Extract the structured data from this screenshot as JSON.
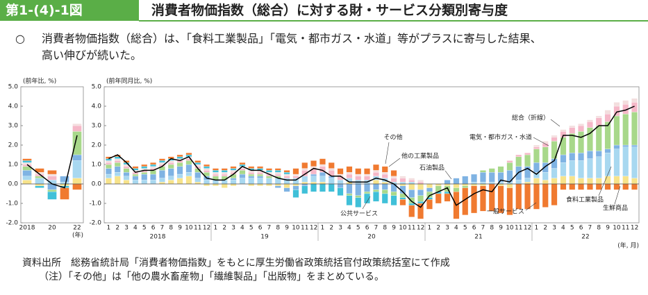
{
  "header": {
    "figure_number": "第1-(4)-1図",
    "title": "消費者物価指数（総合）に対する財・サービス分類別寄与度"
  },
  "summary": {
    "bullet": "○",
    "lines": [
      "消費者物価指数（総合）は、「食料工業製品」「電気・都市ガス・水道」等がプラスに寄与した結果、",
      "高い伸びが続いた。"
    ]
  },
  "chart_data": [
    {
      "type": "stacked_bar",
      "y_axis_label": "(前年比, %)",
      "x_axis_label": "(年)",
      "categories": [
        "2018",
        null,
        "20",
        null,
        "22"
      ],
      "ylim": [
        -2,
        5
      ],
      "yticks": [
        {
          "value": -2,
          "label": "-2.0"
        },
        {
          "value": -1,
          "label": "-1.0"
        },
        {
          "value": 0,
          "label": "0.0"
        },
        {
          "value": 1,
          "label": "1.0"
        },
        {
          "value": 2,
          "label": "2.0"
        },
        {
          "value": 3,
          "label": "3.0"
        },
        {
          "value": 4,
          "label": "4.0"
        },
        {
          "value": 5,
          "label": "5.0"
        }
      ],
      "series": [
        {
          "color": "#f7e38a",
          "values": [
            0.2,
            -0.1,
            0.0,
            -0.1,
            0.3
          ]
        },
        {
          "color": "#a8d8f0",
          "values": [
            0.2,
            0.3,
            0.2,
            0.1,
            0.9
          ]
        },
        {
          "color": "#7fb3e3",
          "values": [
            0.3,
            0.0,
            -0.3,
            0.3,
            0.3
          ]
        },
        {
          "color": "#a8d88a",
          "values": [
            0.2,
            0.1,
            -0.1,
            0.0,
            1.2
          ]
        },
        {
          "color": "#f5b8c8",
          "values": [
            0.1,
            0.1,
            0.2,
            0.0,
            0.3
          ]
        },
        {
          "color": "#f3dede",
          "values": [
            0.1,
            0.1,
            0.1,
            0.0,
            0.1
          ]
        },
        {
          "color": "#40c0d8",
          "values": [
            0.1,
            -0.1,
            -0.4,
            -0.1,
            0.0
          ]
        },
        {
          "color": "#f07a30",
          "values": [
            0.1,
            0.2,
            0.2,
            -0.6,
            -0.3
          ]
        },
        {
          "type": "line",
          "color": "#000000",
          "values": [
            1.0,
            0.5,
            0.0,
            -0.2,
            2.5
          ]
        }
      ]
    },
    {
      "type": "stacked_bar",
      "y_axis_label": "(前年同月比, %)",
      "x_axis_label": "(年, 月)",
      "categories": [
        "1",
        "2",
        "3",
        "4",
        "5",
        "6",
        "7",
        "8",
        "9",
        "10",
        "11",
        "12",
        "1",
        "2",
        "3",
        "4",
        "5",
        "6",
        "7",
        "8",
        "9",
        "10",
        "11",
        "12",
        "1",
        "2",
        "3",
        "4",
        "5",
        "6",
        "7",
        "8",
        "9",
        "10",
        "11",
        "12",
        "1",
        "2",
        "3",
        "4",
        "5",
        "6",
        "7",
        "8",
        "9",
        "10",
        "11",
        "12",
        "1",
        "2",
        "3",
        "4",
        "5",
        "6",
        "7",
        "8",
        "9",
        "10",
        "11",
        "12"
      ],
      "groups": [
        "2018",
        "19",
        "20",
        "21",
        "22"
      ],
      "ylim": [
        -2,
        5
      ],
      "yticks": [
        {
          "value": -2,
          "label": "-2.0"
        },
        {
          "value": -1,
          "label": "-1.0"
        },
        {
          "value": 0,
          "label": "0.0"
        },
        {
          "value": 1,
          "label": "1.0"
        },
        {
          "value": 2,
          "label": "2.0"
        },
        {
          "value": 3,
          "label": "3.0"
        },
        {
          "value": 4,
          "label": "4.0"
        },
        {
          "value": 5,
          "label": "5.0"
        }
      ],
      "series": [
        {
          "name": "生鮮商品",
          "color": "#f7e38a",
          "values": [
            0.3,
            0.4,
            0.2,
            0.0,
            0.0,
            0.0,
            0.1,
            0.2,
            0.3,
            0.4,
            0.1,
            -0.1,
            -0.1,
            -0.2,
            -0.1,
            0.0,
            -0.1,
            -0.1,
            -0.1,
            -0.1,
            -0.2,
            -0.1,
            0.1,
            0.1,
            0.1,
            0.0,
            0.0,
            0.1,
            0.0,
            0.0,
            0.2,
            0.1,
            0.0,
            -0.1,
            -0.3,
            -0.3,
            -0.2,
            -0.1,
            -0.1,
            -0.2,
            -0.1,
            -0.1,
            -0.1,
            0.0,
            -0.1,
            -0.2,
            0.0,
            0.1,
            0.3,
            0.2,
            0.3,
            0.4,
            0.4,
            0.3,
            0.3,
            0.3,
            0.4,
            0.4,
            0.4,
            0.3
          ]
        },
        {
          "name": "食料工業製品",
          "color": "#a8d8f0",
          "values": [
            0.2,
            0.2,
            0.2,
            0.2,
            0.2,
            0.2,
            0.2,
            0.2,
            0.2,
            0.2,
            0.2,
            0.2,
            0.2,
            0.2,
            0.2,
            0.3,
            0.3,
            0.3,
            0.3,
            0.3,
            0.3,
            0.3,
            0.3,
            0.3,
            0.3,
            0.3,
            0.2,
            0.2,
            0.2,
            0.2,
            0.2,
            0.2,
            0.1,
            0.1,
            0.1,
            0.0,
            0.0,
            0.0,
            0.0,
            0.0,
            0.0,
            0.1,
            0.1,
            0.1,
            0.1,
            0.1,
            0.2,
            0.2,
            0.3,
            0.4,
            0.5,
            0.7,
            0.8,
            0.9,
            1.0,
            1.1,
            1.2,
            1.4,
            1.5,
            1.6
          ]
        },
        {
          "name": "石油製品",
          "color": "#7fb3e3",
          "values": [
            0.3,
            0.3,
            0.2,
            0.2,
            0.3,
            0.3,
            0.4,
            0.4,
            0.4,
            0.4,
            0.3,
            0.2,
            0.0,
            0.0,
            0.1,
            0.2,
            0.1,
            0.1,
            0.0,
            -0.1,
            -0.2,
            -0.2,
            -0.1,
            0.1,
            0.2,
            0.1,
            -0.2,
            -0.5,
            -0.6,
            -0.4,
            -0.3,
            -0.3,
            -0.4,
            -0.4,
            -0.4,
            -0.3,
            -0.2,
            0.0,
            0.2,
            0.3,
            0.4,
            0.4,
            0.5,
            0.5,
            0.5,
            0.6,
            0.7,
            0.6,
            0.5,
            0.5,
            0.5,
            0.4,
            0.4,
            0.4,
            0.4,
            0.3,
            0.2,
            0.2,
            0.1,
            0.1
          ]
        },
        {
          "name": "電気・都市ガス・水道",
          "color": "#a8d88a",
          "values": [
            0.2,
            0.2,
            0.2,
            0.1,
            0.1,
            0.2,
            0.2,
            0.2,
            0.2,
            0.2,
            0.2,
            0.2,
            0.2,
            0.2,
            0.2,
            0.2,
            0.1,
            0.1,
            0.1,
            0.1,
            0.0,
            0.0,
            0.0,
            0.0,
            0.0,
            0.0,
            0.0,
            -0.1,
            -0.1,
            -0.1,
            -0.1,
            -0.2,
            -0.2,
            -0.2,
            -0.3,
            -0.3,
            -0.3,
            -0.3,
            -0.3,
            -0.2,
            -0.1,
            0.0,
            0.1,
            0.2,
            0.3,
            0.4,
            0.5,
            0.6,
            0.7,
            0.8,
            0.9,
            0.9,
            1.0,
            1.1,
            1.2,
            1.3,
            1.4,
            1.5,
            1.6,
            1.7
          ]
        },
        {
          "name": "他の工業製品",
          "color": "#f5b8c8",
          "values": [
            0.1,
            0.1,
            0.1,
            0.1,
            0.1,
            0.1,
            0.1,
            0.1,
            0.1,
            0.1,
            0.1,
            0.1,
            0.1,
            0.1,
            0.1,
            0.1,
            0.1,
            0.1,
            0.1,
            0.1,
            0.1,
            0.1,
            0.3,
            0.3,
            0.3,
            0.3,
            0.2,
            0.2,
            0.2,
            0.2,
            0.2,
            0.2,
            0.2,
            0.2,
            0.1,
            0.1,
            0.0,
            0.0,
            0.0,
            0.0,
            0.0,
            0.0,
            0.0,
            0.0,
            0.0,
            0.1,
            0.1,
            0.1,
            0.1,
            0.2,
            0.2,
            0.3,
            0.3,
            0.3,
            0.3,
            0.4,
            0.4,
            0.5,
            0.5,
            0.5
          ]
        },
        {
          "name": "その他",
          "color": "#f3dede",
          "values": [
            0.1,
            0.1,
            0.1,
            0.1,
            0.1,
            0.1,
            0.1,
            0.1,
            0.1,
            0.1,
            0.1,
            0.1,
            0.1,
            0.1,
            0.1,
            0.1,
            0.1,
            0.1,
            0.1,
            0.1,
            0.1,
            0.1,
            0.1,
            0.1,
            0.1,
            0.1,
            0.1,
            0.1,
            0.1,
            0.1,
            0.1,
            0.1,
            0.1,
            0.1,
            0.1,
            0.1,
            0.0,
            0.0,
            0.0,
            0.0,
            0.0,
            0.0,
            0.0,
            0.0,
            0.0,
            0.0,
            0.0,
            0.0,
            0.1,
            0.1,
            0.1,
            0.1,
            0.1,
            0.1,
            0.1,
            0.1,
            0.2,
            0.2,
            0.2,
            0.2
          ]
        },
        {
          "name": "公共サービス",
          "color": "#40c0d8",
          "values": [
            0.1,
            0.1,
            0.1,
            0.1,
            0.1,
            0.1,
            0.1,
            0.1,
            0.1,
            0.1,
            0.1,
            0.1,
            0.1,
            0.1,
            0.1,
            0.1,
            0.1,
            0.1,
            0.1,
            0.1,
            0.1,
            -0.4,
            -0.4,
            -0.4,
            -0.4,
            -0.4,
            -0.4,
            -0.5,
            -0.5,
            -0.5,
            -0.5,
            -0.5,
            -0.5,
            -0.1,
            -0.1,
            -0.1,
            -0.1,
            -0.1,
            -0.1,
            0.0,
            0.0,
            0.0,
            0.0,
            0.0,
            0.0,
            0.0,
            0.0,
            0.0,
            0.0,
            0.0,
            0.0,
            0.0,
            0.0,
            0.0,
            0.0,
            0.0,
            0.0,
            0.0,
            0.0,
            0.0
          ]
        },
        {
          "name": "一般サービス",
          "color": "#f07a30",
          "values": [
            0.1,
            0.1,
            0.1,
            0.1,
            0.1,
            0.1,
            0.1,
            0.1,
            0.1,
            0.1,
            0.1,
            0.1,
            0.1,
            0.1,
            0.1,
            0.1,
            0.1,
            0.1,
            0.1,
            0.1,
            0.1,
            0.3,
            0.3,
            0.3,
            0.3,
            0.3,
            0.3,
            0.3,
            0.3,
            0.3,
            0.3,
            0.3,
            0.3,
            -0.3,
            -0.6,
            -0.8,
            -0.5,
            -0.5,
            -0.4,
            -1.4,
            -1.4,
            -1.4,
            -1.3,
            -1.4,
            -1.4,
            -1.4,
            -1.3,
            -1.3,
            -1.3,
            -1.2,
            -1.1,
            -0.3,
            -0.3,
            -0.3,
            -0.3,
            -0.3,
            -0.3,
            -0.3,
            -0.3,
            -0.3
          ]
        },
        {
          "name": "総合（折線）",
          "type": "line",
          "color": "#000000",
          "values": [
            1.3,
            1.5,
            1.1,
            0.6,
            0.7,
            0.7,
            0.9,
            1.3,
            1.2,
            1.4,
            0.8,
            0.3,
            0.2,
            0.2,
            0.5,
            0.9,
            0.7,
            0.7,
            0.5,
            0.3,
            0.2,
            0.2,
            0.5,
            0.8,
            0.7,
            0.4,
            0.4,
            0.1,
            0.1,
            0.1,
            0.3,
            0.2,
            0.0,
            -0.4,
            -0.9,
            -1.2,
            -0.6,
            -0.4,
            -0.2,
            -1.1,
            -0.8,
            -0.5,
            -0.3,
            -0.4,
            0.2,
            0.1,
            0.6,
            0.8,
            0.5,
            0.9,
            1.2,
            2.5,
            2.5,
            2.4,
            2.6,
            3.0,
            3.0,
            3.7,
            3.8,
            4.0
          ]
        }
      ]
    }
  ],
  "footer": {
    "source_label": "資料出所",
    "source": "総務省統計局「消費者物価指数」をもとに厚生労働省政策統括官付政策統括室にて作成",
    "note_label": "（注）",
    "note": "「その他」は「他の農水畜産物」「繊維製品」「出版物」をまとめている。"
  }
}
